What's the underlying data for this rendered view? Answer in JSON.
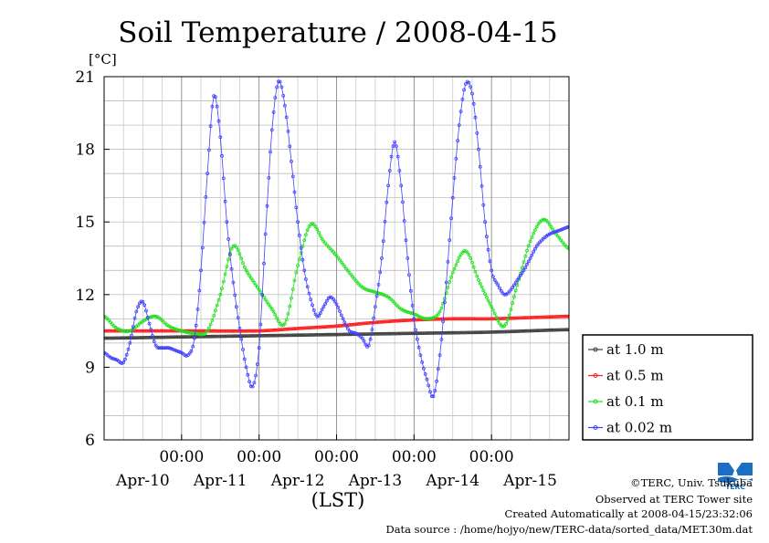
{
  "chart_data": {
    "type": "line",
    "title": "Soil Temperature / 2008-04-15",
    "ylabel": "[°C]",
    "xlabel": "(LST)",
    "ylim": [
      6,
      21
    ],
    "yticks": [
      6,
      9,
      12,
      15,
      18,
      21
    ],
    "xlim_hours": [
      0,
      144
    ],
    "xticks_time": [
      {
        "hour": 24,
        "label": "00:00"
      },
      {
        "hour": 48,
        "label": "00:00"
      },
      {
        "hour": 72,
        "label": "00:00"
      },
      {
        "hour": 96,
        "label": "00:00"
      },
      {
        "hour": 120,
        "label": "00:00"
      }
    ],
    "xticks_date": [
      {
        "hour": 12,
        "label": "Apr-10"
      },
      {
        "hour": 36,
        "label": "Apr-11"
      },
      {
        "hour": 60,
        "label": "Apr-12"
      },
      {
        "hour": 84,
        "label": "Apr-13"
      },
      {
        "hour": 108,
        "label": "Apr-14"
      },
      {
        "hour": 132,
        "label": "Apr-15"
      }
    ],
    "grid": true,
    "legend_position": "right",
    "series": [
      {
        "name": "at 1.0 m",
        "color": "#404040",
        "x": [
          0,
          24,
          48,
          72,
          96,
          120,
          144
        ],
        "y": [
          10.2,
          10.25,
          10.3,
          10.35,
          10.4,
          10.45,
          10.55
        ]
      },
      {
        "name": "at 0.5 m",
        "color": "#ff2020",
        "x": [
          0,
          24,
          48,
          60,
          72,
          84,
          96,
          108,
          120,
          132,
          144
        ],
        "y": [
          10.5,
          10.5,
          10.5,
          10.6,
          10.7,
          10.85,
          10.95,
          11.0,
          11.0,
          11.05,
          11.1
        ],
        "markers": true
      },
      {
        "name": "at 0.1 m",
        "color": "#20e020",
        "x": [
          0,
          4,
          8,
          12,
          16,
          20,
          24,
          28,
          32,
          36,
          40,
          44,
          48,
          52,
          56,
          60,
          64,
          68,
          72,
          76,
          80,
          84,
          88,
          92,
          96,
          100,
          104,
          108,
          112,
          116,
          120,
          124,
          128,
          132,
          136,
          140,
          144
        ],
        "y": [
          11.1,
          10.6,
          10.5,
          10.9,
          11.1,
          10.7,
          10.5,
          10.4,
          10.5,
          12.0,
          14.0,
          13.0,
          12.2,
          11.4,
          10.8,
          13.2,
          14.9,
          14.2,
          13.6,
          12.9,
          12.3,
          12.1,
          11.9,
          11.4,
          11.2,
          11.0,
          11.3,
          12.9,
          13.8,
          12.6,
          11.5,
          10.7,
          12.4,
          14.2,
          15.1,
          14.5,
          13.9
        ]
      },
      {
        "name": "at 0.02 m",
        "color": "#4040ff",
        "x": [
          0,
          2,
          4,
          6,
          8,
          10,
          12,
          14,
          16,
          18,
          20,
          22,
          24,
          26,
          28,
          30,
          32,
          34,
          36,
          38,
          40,
          42,
          44,
          46,
          48,
          50,
          52,
          54,
          56,
          58,
          60,
          62,
          64,
          66,
          68,
          70,
          72,
          74,
          76,
          78,
          80,
          82,
          84,
          86,
          88,
          90,
          92,
          94,
          96,
          98,
          100,
          102,
          104,
          106,
          108,
          110,
          112,
          114,
          116,
          118,
          120,
          122,
          124,
          126,
          128,
          130,
          132,
          134,
          136,
          138,
          140,
          142,
          144
        ],
        "y": [
          9.6,
          9.4,
          9.3,
          9.2,
          10.0,
          11.3,
          11.7,
          10.8,
          9.9,
          9.8,
          9.8,
          9.7,
          9.6,
          9.5,
          10.2,
          13.0,
          17.0,
          20.2,
          18.5,
          15.0,
          12.5,
          10.6,
          9.0,
          8.2,
          9.8,
          14.5,
          18.8,
          20.8,
          19.8,
          17.5,
          15.0,
          13.0,
          11.8,
          11.1,
          11.5,
          11.9,
          11.6,
          11.0,
          10.5,
          10.4,
          10.2,
          9.9,
          11.5,
          13.5,
          16.5,
          18.3,
          16.5,
          13.5,
          11.0,
          9.5,
          8.5,
          7.8,
          9.5,
          12.5,
          16.0,
          19.0,
          20.7,
          20.3,
          18.0,
          15.0,
          13.0,
          12.4,
          12.0,
          12.2,
          12.6,
          13.0,
          13.5,
          14.0,
          14.3,
          14.5,
          14.6,
          14.7,
          14.8
        ]
      }
    ]
  },
  "credits": {
    "copyright": "©TERC, Univ. Tsukuba",
    "observed": "Observed at TERC Tower site",
    "created": "Created Automatically at 2008-04-15/23:32:06",
    "source": "Data source : /home/hojyo/new/TERC-data/sorted_data/MET.30m.dat"
  },
  "logo": {
    "text": "TERC",
    "color": "#1a6fc4"
  }
}
